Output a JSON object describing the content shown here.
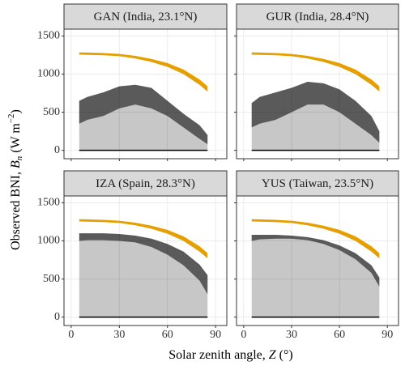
{
  "xlabel": {
    "text": "Solar zenith angle, ",
    "symbol": "Z",
    "unit": " (°)"
  },
  "ylabel": {
    "text": "Observed BNI, ",
    "symbol": "B",
    "subscript": "n",
    "unit": " (W m",
    "exponent": "−2",
    "close": ")"
  },
  "chart_data": [
    {
      "type": "band",
      "title": "GAN (India, 23.1°N)",
      "x": [
        5,
        10,
        20,
        30,
        40,
        50,
        60,
        70,
        80,
        85
      ],
      "band_upper": [
        1285,
        1283,
        1277,
        1265,
        1240,
        1200,
        1145,
        1060,
        930,
        840
      ],
      "band_lower": [
        1255,
        1253,
        1247,
        1235,
        1205,
        1160,
        1095,
        1000,
        860,
        770
      ],
      "cloud_upper": [
        650,
        700,
        760,
        840,
        860,
        820,
        650,
        480,
        330,
        200
      ],
      "dense_lower": [
        350,
        400,
        450,
        550,
        600,
        550,
        450,
        300,
        150,
        80
      ],
      "band_color": "#e69f00",
      "cloud_color": "#000000",
      "xlim": [
        -4.5,
        97
      ],
      "ylim": [
        -110,
        1590
      ],
      "xticks": [
        0,
        30,
        60,
        90
      ],
      "yticks": [
        0,
        500,
        1000,
        1500
      ],
      "grid": true
    },
    {
      "type": "band",
      "title": "GUR (India, 28.4°N)",
      "x": [
        5,
        10,
        20,
        30,
        40,
        50,
        60,
        70,
        80,
        85
      ],
      "band_upper": [
        1285,
        1283,
        1277,
        1265,
        1240,
        1200,
        1145,
        1060,
        930,
        840
      ],
      "band_lower": [
        1255,
        1253,
        1247,
        1235,
        1205,
        1160,
        1095,
        1000,
        860,
        770
      ],
      "cloud_upper": [
        620,
        700,
        760,
        820,
        900,
        880,
        800,
        650,
        450,
        250
      ],
      "dense_lower": [
        300,
        350,
        400,
        500,
        600,
        600,
        500,
        350,
        200,
        100
      ],
      "band_color": "#e69f00",
      "cloud_color": "#000000",
      "xlim": [
        -4.5,
        97
      ],
      "ylim": [
        -110,
        1590
      ],
      "xticks": [
        0,
        30,
        60,
        90
      ],
      "yticks": [
        0,
        500,
        1000,
        1500
      ],
      "grid": true
    },
    {
      "type": "band",
      "title": "IZA (Spain, 28.3°N)",
      "x": [
        5,
        10,
        20,
        30,
        40,
        50,
        60,
        70,
        80,
        85
      ],
      "band_upper": [
        1285,
        1283,
        1277,
        1265,
        1240,
        1200,
        1145,
        1060,
        930,
        840
      ],
      "band_lower": [
        1255,
        1253,
        1247,
        1235,
        1205,
        1160,
        1095,
        1000,
        860,
        770
      ],
      "cloud_upper": [
        1100,
        1100,
        1100,
        1090,
        1070,
        1030,
        960,
        860,
        690,
        550
      ],
      "dense_lower": [
        1000,
        1010,
        1010,
        1000,
        980,
        920,
        820,
        680,
        480,
        300
      ],
      "band_color": "#e69f00",
      "cloud_color": "#000000",
      "xlim": [
        -4.5,
        97
      ],
      "ylim": [
        -110,
        1590
      ],
      "xticks": [
        0,
        30,
        60,
        90
      ],
      "yticks": [
        0,
        500,
        1000,
        1500
      ],
      "grid": true
    },
    {
      "type": "band",
      "title": "YUS (Taiwan, 23.5°N)",
      "x": [
        5,
        10,
        20,
        30,
        40,
        50,
        60,
        70,
        80,
        85
      ],
      "band_upper": [
        1285,
        1283,
        1277,
        1265,
        1240,
        1200,
        1145,
        1060,
        930,
        840
      ],
      "band_lower": [
        1255,
        1253,
        1247,
        1235,
        1205,
        1160,
        1095,
        1000,
        860,
        770
      ],
      "cloud_upper": [
        1080,
        1080,
        1080,
        1070,
        1050,
        1010,
        940,
        840,
        680,
        520
      ],
      "dense_lower": [
        1000,
        1020,
        1030,
        1030,
        1010,
        960,
        880,
        760,
        580,
        400
      ],
      "band_color": "#e69f00",
      "cloud_color": "#000000",
      "xlim": [
        -4.5,
        97
      ],
      "ylim": [
        -110,
        1590
      ],
      "xticks": [
        0,
        30,
        60,
        90
      ],
      "yticks": [
        0,
        500,
        1000,
        1500
      ],
      "grid": true
    }
  ]
}
